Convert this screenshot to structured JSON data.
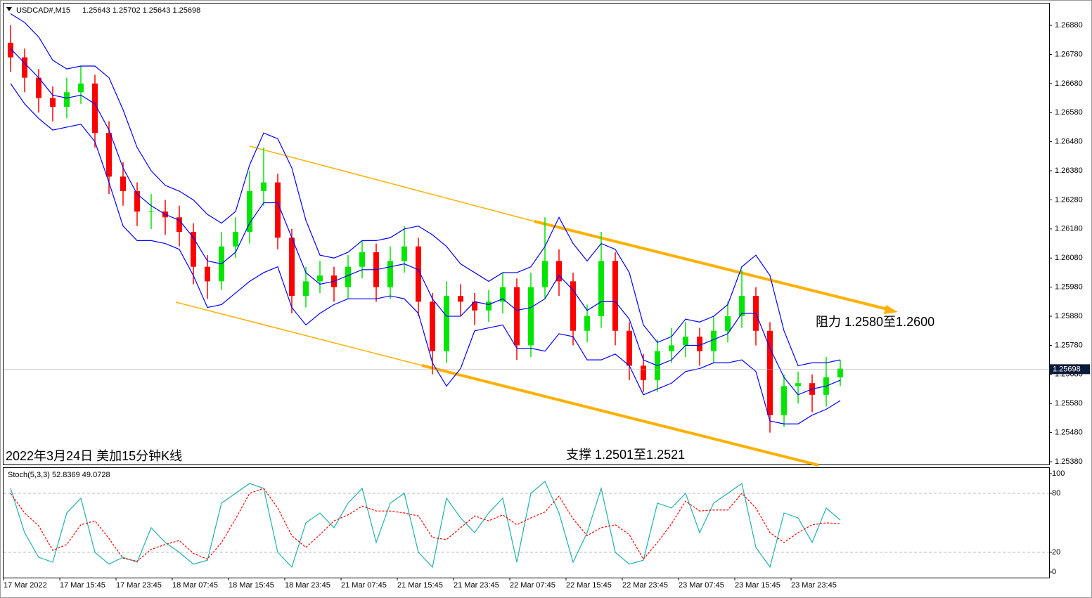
{
  "chart_data": [
    {
      "type": "candlestick",
      "title": "USDCAD#,M15",
      "subtitle": "1.25643 1.25702 1.25643 1.25698",
      "categories": [
        "17 Mar 2022",
        null,
        null,
        null,
        "17 Mar 15:45",
        null,
        null,
        null,
        "17 Mar 23:45",
        null,
        null,
        null,
        "18 Mar 07:45",
        null,
        null,
        null,
        "18 Mar 15:45",
        null,
        null,
        null,
        "18 Mar 23:45",
        null,
        null,
        null,
        "21 Mar 07:45",
        null,
        null,
        null,
        "21 Mar 15:45",
        null,
        null,
        null,
        "21 Mar 23:45",
        null,
        null,
        null,
        "22 Mar 07:45",
        null,
        null,
        null,
        "22 Mar 15:45",
        null,
        null,
        null,
        "22 Mar 23:45",
        null,
        null,
        null,
        "23 Mar 07:45",
        null,
        null,
        null,
        "23 Mar 15:45",
        null,
        null,
        null,
        "23 Mar 23:45",
        null,
        null,
        null
      ],
      "open": [
        1.2682,
        1.2677,
        1.267,
        1.2663,
        1.266,
        1.2665,
        1.2668,
        1.2651,
        1.2636,
        1.2631,
        1.2624,
        1.2624,
        1.2622,
        1.2617,
        1.2605,
        1.26,
        1.2612,
        1.2617,
        1.2631,
        1.2634,
        1.2615,
        1.2595,
        1.26,
        1.2602,
        1.2598,
        1.2605,
        1.261,
        1.2598,
        1.2607,
        1.2612,
        1.2593,
        1.2576,
        1.2595,
        1.2593,
        1.259,
        1.2593,
        1.2598,
        1.2578,
        1.2598,
        1.2607,
        1.26,
        1.2583,
        1.2588,
        1.2607,
        1.2583,
        1.2571,
        1.2566,
        1.2576,
        1.2578,
        1.2581,
        1.2576,
        1.2583,
        1.2588,
        1.2595,
        1.2583,
        1.2554,
        1.2564,
        1.2565,
        1.2561,
        1.2567
      ],
      "high": [
        1.2688,
        1.268,
        1.2673,
        1.2667,
        1.267,
        1.2674,
        1.2671,
        1.2655,
        1.2641,
        1.2634,
        1.263,
        1.2628,
        1.2626,
        1.262,
        1.2609,
        1.2617,
        1.2622,
        1.2638,
        1.2646,
        1.2637,
        1.2618,
        1.2605,
        1.2607,
        1.2605,
        1.2609,
        1.2614,
        1.2613,
        1.2612,
        1.2619,
        1.2615,
        1.2596,
        1.26,
        1.2599,
        1.2596,
        1.2597,
        1.2603,
        1.2601,
        1.2603,
        1.2622,
        1.2611,
        1.2603,
        1.2592,
        1.2617,
        1.261,
        1.2586,
        1.2575,
        1.258,
        1.2584,
        1.2586,
        1.2584,
        1.2588,
        1.2593,
        1.2604,
        1.2598,
        1.2586,
        1.2568,
        1.2569,
        1.2568,
        1.2574,
        1.2573
      ],
      "low": [
        1.2672,
        1.2665,
        1.2658,
        1.2655,
        1.2656,
        1.2661,
        1.2646,
        1.263,
        1.2626,
        1.2619,
        1.2618,
        1.2616,
        1.2612,
        1.2599,
        1.2594,
        1.2597,
        1.2608,
        1.2613,
        1.2626,
        1.2611,
        1.2589,
        1.2591,
        1.2596,
        1.2593,
        1.2594,
        1.2601,
        1.2593,
        1.2594,
        1.2603,
        1.2588,
        1.2568,
        1.2572,
        1.2588,
        1.2585,
        1.2586,
        1.2589,
        1.2573,
        1.2574,
        1.2594,
        1.2595,
        1.2578,
        1.2579,
        1.2584,
        1.2578,
        1.2566,
        1.2562,
        1.2562,
        1.2572,
        1.2574,
        1.2571,
        1.2572,
        1.2579,
        1.2584,
        1.2578,
        1.2548,
        1.255,
        1.2558,
        1.2555,
        1.2557,
        1.2564
      ],
      "close": [
        1.2677,
        1.267,
        1.2663,
        1.266,
        1.2665,
        1.2668,
        1.2651,
        1.2636,
        1.2631,
        1.2624,
        1.2624,
        1.2622,
        1.2617,
        1.2605,
        1.26,
        1.2612,
        1.2617,
        1.2631,
        1.2634,
        1.2615,
        1.2595,
        1.26,
        1.2602,
        1.2598,
        1.2605,
        1.261,
        1.2598,
        1.2607,
        1.2612,
        1.2593,
        1.2576,
        1.2595,
        1.2593,
        1.259,
        1.2593,
        1.2598,
        1.2578,
        1.2598,
        1.2607,
        1.26,
        1.2583,
        1.2588,
        1.2607,
        1.2583,
        1.2571,
        1.2566,
        1.2576,
        1.2578,
        1.2581,
        1.2576,
        1.2583,
        1.2588,
        1.2595,
        1.2583,
        1.2554,
        1.2564,
        1.2565,
        1.2561,
        1.2567,
        1.257
      ],
      "up_color": "#00e600",
      "down_color": "#ff0000",
      "bands": {
        "color": "#0000ff",
        "upper": [
          1.2692,
          1.2689,
          1.2684,
          1.2676,
          1.2673,
          1.2674,
          1.2674,
          1.267,
          1.2659,
          1.2646,
          1.2638,
          1.2633,
          1.2631,
          1.2628,
          1.2623,
          1.262,
          1.2624,
          1.264,
          1.2651,
          1.2649,
          1.2639,
          1.2621,
          1.2609,
          1.2608,
          1.261,
          1.2614,
          1.2614,
          1.2615,
          1.2618,
          1.2619,
          1.2616,
          1.2612,
          1.2606,
          1.2603,
          1.26,
          1.2603,
          1.2603,
          1.2605,
          1.2612,
          1.2622,
          1.2613,
          1.2607,
          1.2613,
          1.2611,
          1.2603,
          1.2585,
          1.2579,
          1.2581,
          1.2587,
          1.2586,
          1.2588,
          1.2592,
          1.2605,
          1.2609,
          1.2602,
          1.2583,
          1.2571,
          1.2572,
          1.2572,
          1.2573
        ],
        "middle": [
          1.268,
          1.2675,
          1.267,
          1.2664,
          1.2663,
          1.2664,
          1.2661,
          1.2652,
          1.2639,
          1.263,
          1.2626,
          1.2623,
          1.2621,
          1.2615,
          1.2607,
          1.2606,
          1.261,
          1.262,
          1.2627,
          1.2627,
          1.2615,
          1.2603,
          1.2599,
          1.26,
          1.2602,
          1.2604,
          1.2604,
          1.2605,
          1.2606,
          1.2604,
          1.2594,
          1.2588,
          1.2588,
          1.2593,
          1.2592,
          1.2594,
          1.259,
          1.2591,
          1.2594,
          1.2602,
          1.2597,
          1.259,
          1.2593,
          1.2593,
          1.2587,
          1.2573,
          1.2571,
          1.2573,
          1.2578,
          1.2578,
          1.258,
          1.2582,
          1.2589,
          1.2589,
          1.2577,
          1.2567,
          1.2561,
          1.2563,
          1.2564,
          1.2566
        ],
        "lower": [
          1.2668,
          1.2661,
          1.2656,
          1.2652,
          1.2653,
          1.2654,
          1.2648,
          1.2634,
          1.2619,
          1.2614,
          1.2614,
          1.2613,
          1.2611,
          1.2602,
          1.2591,
          1.2592,
          1.2596,
          1.26,
          1.2603,
          1.2605,
          1.2591,
          1.2585,
          1.2589,
          1.2592,
          1.2594,
          1.2594,
          1.2594,
          1.2595,
          1.2594,
          1.2589,
          1.2572,
          1.2564,
          1.257,
          1.2583,
          1.2584,
          1.2585,
          1.2577,
          1.2577,
          1.2576,
          1.2582,
          1.2581,
          1.2573,
          1.2573,
          1.2575,
          1.2571,
          1.2561,
          1.2563,
          1.2565,
          1.2569,
          1.257,
          1.2572,
          1.2572,
          1.2573,
          1.2569,
          1.2552,
          1.2551,
          1.2551,
          1.2554,
          1.2556,
          1.2559
        ]
      },
      "current_price": 1.25698,
      "ylim": [
        1.25368,
        1.26955
      ],
      "yticks": [
        {
          "value": 1.2688,
          "label": "1.26880"
        },
        {
          "value": 1.2678,
          "label": "1.26780"
        },
        {
          "value": 1.2668,
          "label": "1.26680"
        },
        {
          "value": 1.2658,
          "label": "1.26580"
        },
        {
          "value": 1.2648,
          "label": "1.26480"
        },
        {
          "value": 1.2638,
          "label": "1.26380"
        },
        {
          "value": 1.2628,
          "label": "1.26280"
        },
        {
          "value": 1.2618,
          "label": "1.26180"
        },
        {
          "value": 1.2608,
          "label": "1.26080"
        },
        {
          "value": 1.2598,
          "label": "1.25980"
        },
        {
          "value": 1.2588,
          "label": "1.25880"
        },
        {
          "value": 1.2578,
          "label": "1.25780"
        },
        {
          "value": 1.2568,
          "label": "1.25680"
        },
        {
          "value": 1.2558,
          "label": "1.25580"
        },
        {
          "value": 1.2548,
          "label": "1.25480"
        },
        {
          "value": 1.2538,
          "label": "1.25380"
        }
      ],
      "annotations": [
        "阻力 1.2580至1.2600",
        "支撑 1.2501至1.2521",
        "2022年3月24日 美加15分钟K线"
      ]
    },
    {
      "type": "line",
      "title": "Stoch(5,3,3) 52.8369 49.0728",
      "series": [
        {
          "color": "#20b2aa",
          "values": [
            85,
            40,
            15,
            10,
            60,
            75,
            20,
            8,
            15,
            10,
            45,
            30,
            20,
            8,
            12,
            70,
            80,
            90,
            85,
            20,
            5,
            50,
            60,
            45,
            70,
            85,
            30,
            70,
            80,
            20,
            5,
            75,
            55,
            40,
            60,
            75,
            10,
            80,
            92,
            60,
            10,
            40,
            85,
            20,
            8,
            12,
            70,
            65,
            80,
            40,
            70,
            80,
            90,
            25,
            5,
            60,
            55,
            30,
            65,
            52.8369
          ]
        },
        {
          "color": "#ff0000",
          "dash": true,
          "values": [
            80,
            60,
            47,
            22,
            28,
            48,
            52,
            34,
            14,
            11,
            23,
            28,
            32,
            19,
            13,
            30,
            54,
            80,
            85,
            65,
            37,
            25,
            38,
            52,
            58,
            67,
            62,
            62,
            60,
            57,
            35,
            33,
            45,
            57,
            52,
            58,
            48,
            55,
            61,
            77,
            54,
            37,
            45,
            48,
            38,
            13,
            30,
            49,
            72,
            62,
            63,
            63,
            80,
            65,
            40,
            30,
            40,
            48,
            50,
            49.0728
          ]
        }
      ],
      "ylim": [
        -5.7,
        106.4
      ],
      "yticks": [
        0,
        20,
        80,
        100
      ],
      "dashed_levels": [
        20,
        80
      ]
    }
  ]
}
